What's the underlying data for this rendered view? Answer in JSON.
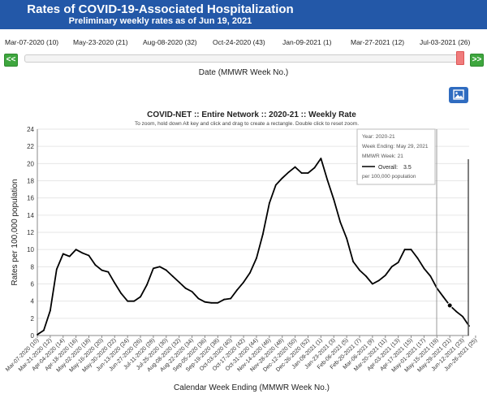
{
  "header": {
    "title": "Rates of COVID-19-Associated Hospitalization",
    "subtitle": "Preliminary weekly rates as of Jun 19, 2021"
  },
  "slider": {
    "labels": [
      "Mar-07-2020 (10)",
      "May-23-2020 (21)",
      "Aug-08-2020 (32)",
      "Oct-24-2020 (43)",
      "Jan-09-2021 (1)",
      "Mar-27-2021 (12)",
      "Jul-03-2021 (26)"
    ],
    "prev_label": "<<",
    "next_label": ">>",
    "axis_title": "Date (MMWR Week No.)",
    "position": 0.985
  },
  "icons": {
    "image_button": "image-icon"
  },
  "chart_data": {
    "type": "line",
    "title": "COVID-NET :: Entire Network :: 2020-21 :: Weekly Rate",
    "subtitle": "To zoom, hold down Alt key and click and drag to create a rectangle. Double click to reset zoom.",
    "xlabel": "Calendar Week Ending (MMWR Week No.)",
    "ylabel": "Rates per 100,000 population",
    "ylim": [
      0,
      24
    ],
    "yticks": [
      0,
      2,
      4,
      6,
      8,
      10,
      12,
      14,
      16,
      18,
      20,
      22,
      24
    ],
    "grid": true,
    "line_color": "#000000",
    "x_tick_labels": [
      "Mar-07-2020 (10)",
      "Mar-21-2020 (12)",
      "Apr-04-2020 (14)",
      "Apr-18-2020 (16)",
      "May-02-2020 (18)",
      "May-16-2020 (20)",
      "May-30-2020 (22)",
      "Jun-13-2020 (24)",
      "Jun-27-2020 (26)",
      "Jul-11-2020 (28)",
      "Jul-25-2020 (30)",
      "Aug-08-2020 (32)",
      "Aug-22-2020 (34)",
      "Sep-05-2020 (36)",
      "Sep-19-2020 (38)",
      "Oct-03-2020 (40)",
      "Oct-17-2020 (42)",
      "Oct-31-2020 (44)",
      "Nov-14-2020 (46)",
      "Nov-28-2020 (48)",
      "Dec-12-2020 (50)",
      "Dec-26-2020 (52)",
      "Jan-09-2021 (1)",
      "Jan-23-2021 (3)",
      "Feb-06-2021 (5)",
      "Feb-20-2021 (7)",
      "Mar-06-2021 (9)",
      "Mar-20-2021 (11)",
      "Apr-03-2021 (13)",
      "Apr-17-2021 (15)",
      "May-01-2021 (17)",
      "May-15-2021 (19)",
      "May-29-2021 (21)",
      "Jun-12-2021 (23)",
      "Jun-26-2021 (25)"
    ],
    "series": [
      {
        "name": "Overall",
        "values": [
          0.1,
          0.6,
          2.9,
          7.7,
          9.5,
          9.2,
          10.0,
          9.6,
          9.3,
          8.2,
          7.6,
          7.4,
          6.1,
          4.9,
          4.0,
          4.0,
          4.5,
          5.9,
          7.8,
          8.0,
          7.6,
          6.9,
          6.2,
          5.5,
          5.1,
          4.3,
          3.9,
          3.8,
          3.8,
          4.2,
          4.3,
          5.3,
          6.2,
          7.3,
          9.0,
          11.8,
          15.4,
          17.5,
          18.3,
          19.0,
          19.6,
          18.9,
          18.9,
          19.5,
          20.6,
          18.1,
          15.8,
          13.2,
          11.3,
          8.6,
          7.6,
          6.9,
          6.0,
          6.4,
          7.0,
          8.0,
          8.5,
          10.0,
          10.0,
          9.0,
          7.8,
          6.9,
          5.5,
          4.5,
          3.5,
          2.8,
          2.2,
          1.1
        ]
      }
    ],
    "highlight_index": 64,
    "tooltip": {
      "season": "Year: 2020-21",
      "week_ending": "Week Ending: May 29, 2021",
      "mmwr_week": "MMWR Week: 21",
      "series_label": "Overall:",
      "value": "3.5",
      "unit": "per 100,000 population"
    }
  }
}
